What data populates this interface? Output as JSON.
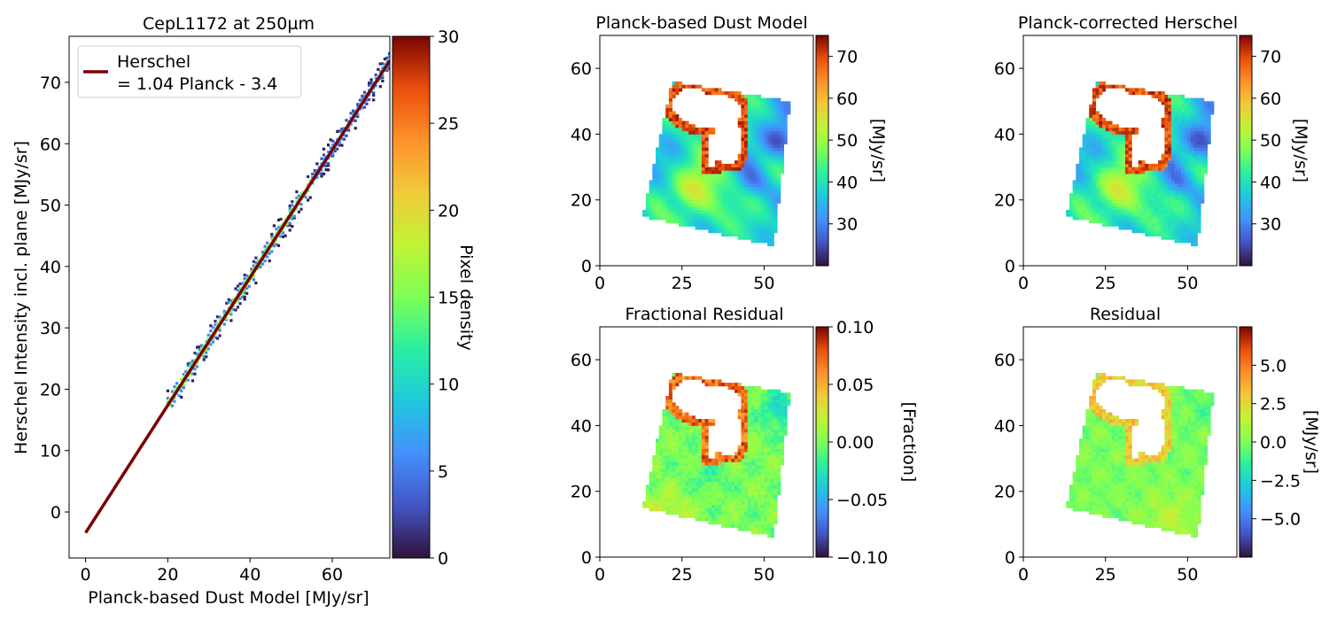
{
  "chart_data": [
    {
      "type": "scatter",
      "title": "CepL1172 at 250µm",
      "xlabel": "Planck-based Dust Model [MJy/sr]",
      "ylabel": "Herschel Intensity incl. plane [MJy/sr]",
      "xlim": [
        -4,
        74
      ],
      "ylim": [
        -7.5,
        77.5
      ],
      "xticks": [
        "0",
        "20",
        "40",
        "60"
      ],
      "yticks": [
        "0",
        "10",
        "20",
        "30",
        "40",
        "50",
        "60",
        "70"
      ],
      "legend": {
        "position": "top-left",
        "line1": "Herschel",
        "line2": "= 1.04 Planck - 3.4"
      },
      "fit_line": {
        "slope": 1.04,
        "intercept": -3.4,
        "color": "#7a0000"
      },
      "density_x_range": [
        20,
        74
      ],
      "colorbar": {
        "label": "Pixel density",
        "range": [
          0,
          30
        ],
        "ticks": [
          "0",
          "5",
          "10",
          "15",
          "20",
          "25",
          "30"
        ],
        "colormap": "turbo"
      }
    },
    {
      "type": "heatmap",
      "title": "Planck-based Dust Model",
      "xlim": [
        0,
        65
      ],
      "ylim": [
        0,
        70
      ],
      "xticks": [
        "0",
        "25",
        "50"
      ],
      "yticks": [
        "0",
        "20",
        "40",
        "60"
      ],
      "colorbar": {
        "label": "[MJy/sr]",
        "range": [
          20,
          75
        ],
        "ticks": [
          "30",
          "40",
          "50",
          "60",
          "70"
        ],
        "colormap": "turbo"
      }
    },
    {
      "type": "heatmap",
      "title": "Planck-corrected Herschel",
      "xlim": [
        0,
        65
      ],
      "ylim": [
        0,
        70
      ],
      "xticks": [
        "0",
        "25",
        "50"
      ],
      "yticks": [
        "0",
        "20",
        "40",
        "60"
      ],
      "colorbar": {
        "label": "[MJy/sr]",
        "range": [
          20,
          75
        ],
        "ticks": [
          "30",
          "40",
          "50",
          "60",
          "70"
        ],
        "colormap": "turbo"
      }
    },
    {
      "type": "heatmap",
      "title": "Fractional Residual",
      "xlim": [
        0,
        65
      ],
      "ylim": [
        0,
        70
      ],
      "xticks": [
        "0",
        "25",
        "50"
      ],
      "yticks": [
        "0",
        "20",
        "40",
        "60"
      ],
      "colorbar": {
        "label": "[Fraction]",
        "range": [
          -0.1,
          0.1
        ],
        "ticks": [
          "−0.10",
          "−0.05",
          "0.00",
          "0.05",
          "0.10"
        ],
        "colormap": "turbo"
      }
    },
    {
      "type": "heatmap",
      "title": "Residual",
      "xlim": [
        0,
        65
      ],
      "ylim": [
        0,
        70
      ],
      "xticks": [
        "0",
        "25",
        "50"
      ],
      "yticks": [
        "0",
        "20",
        "40",
        "60"
      ],
      "colorbar": {
        "label": "[MJy/sr]",
        "range": [
          -7.5,
          7.5
        ],
        "ticks": [
          "−5.0",
          "−2.5",
          "0.0",
          "2.5",
          "5.0"
        ],
        "colormap": "turbo"
      }
    }
  ]
}
